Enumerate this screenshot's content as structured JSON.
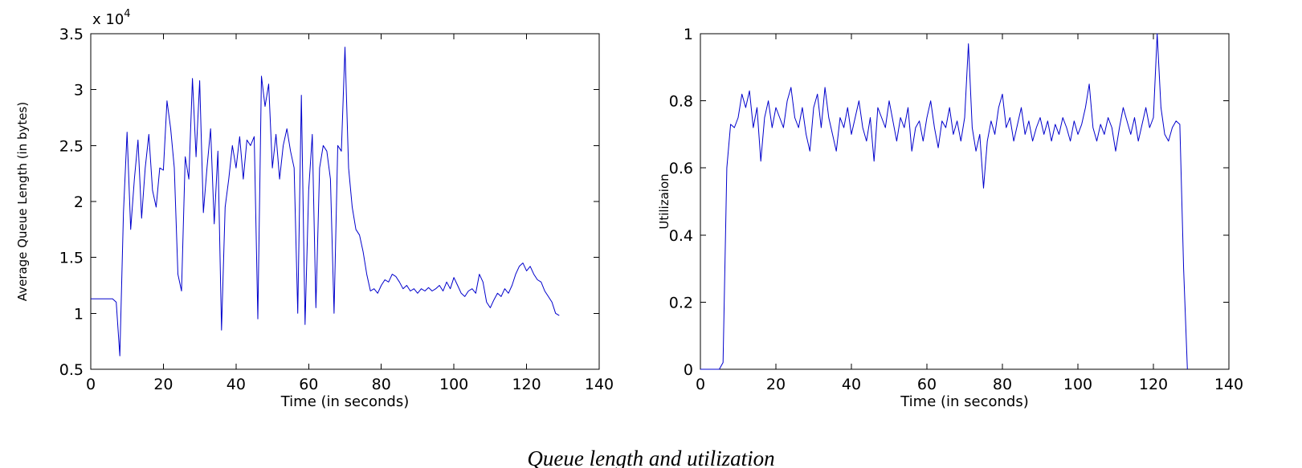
{
  "page": {
    "background": "#ffffff",
    "axis_color": "#000000"
  },
  "caption": {
    "text": "Queue length and utilization"
  },
  "chart_data": [
    {
      "type": "line",
      "title": "",
      "xlabel": "Time (in seconds)",
      "ylabel": "Average Queue Length (in bytes)",
      "y_scale": {
        "text": "x 10",
        "exp": "4"
      },
      "xlim": [
        0,
        140
      ],
      "ylim": [
        0.5,
        3.5
      ],
      "xticks": [
        0,
        20,
        40,
        60,
        80,
        100,
        120,
        140
      ],
      "yticks": [
        0.5,
        1,
        1.5,
        2,
        2.5,
        3,
        3.5
      ],
      "grid": false,
      "legend": "none",
      "line_color": "#0000cc",
      "x_range": [
        0,
        129,
        1
      ],
      "y": [
        1.13,
        1.13,
        1.13,
        1.13,
        1.13,
        1.13,
        1.13,
        1.1,
        0.62,
        1.9,
        2.62,
        1.75,
        2.2,
        2.55,
        1.85,
        2.3,
        2.6,
        2.1,
        1.95,
        2.3,
        2.28,
        2.9,
        2.65,
        2.3,
        1.35,
        1.2,
        2.4,
        2.2,
        3.1,
        2.4,
        3.08,
        1.9,
        2.3,
        2.65,
        1.8,
        2.45,
        0.85,
        1.95,
        2.2,
        2.5,
        2.3,
        2.58,
        2.2,
        2.55,
        2.5,
        2.58,
        0.95,
        3.12,
        2.85,
        3.05,
        2.3,
        2.6,
        2.2,
        2.5,
        2.65,
        2.45,
        2.3,
        1.0,
        2.95,
        0.9,
        2.1,
        2.6,
        1.05,
        2.3,
        2.5,
        2.45,
        2.2,
        1.0,
        2.5,
        2.45,
        3.38,
        2.3,
        1.95,
        1.75,
        1.7,
        1.55,
        1.35,
        1.2,
        1.22,
        1.18,
        1.25,
        1.3,
        1.28,
        1.35,
        1.33,
        1.28,
        1.22,
        1.25,
        1.2,
        1.22,
        1.18,
        1.22,
        1.2,
        1.23,
        1.2,
        1.22,
        1.25,
        1.2,
        1.28,
        1.22,
        1.32,
        1.25,
        1.18,
        1.15,
        1.2,
        1.22,
        1.18,
        1.35,
        1.28,
        1.1,
        1.05,
        1.12,
        1.18,
        1.15,
        1.22,
        1.18,
        1.25,
        1.35,
        1.42,
        1.45,
        1.38,
        1.42,
        1.35,
        1.3,
        1.28,
        1.2,
        1.15,
        1.1,
        1.0,
        0.98
      ]
    },
    {
      "type": "line",
      "title": "",
      "xlabel": "Time (in seconds)",
      "ylabel": "Utilizaion",
      "xlim": [
        0,
        140
      ],
      "ylim": [
        0,
        1
      ],
      "xticks": [
        0,
        20,
        40,
        60,
        80,
        100,
        120,
        140
      ],
      "yticks": [
        0,
        0.2,
        0.4,
        0.6,
        0.8,
        1
      ],
      "grid": false,
      "legend": "none",
      "line_color": "#0000cc",
      "x_range": [
        0,
        129,
        1
      ],
      "y": [
        0,
        0,
        0,
        0,
        0,
        0,
        0.02,
        0.6,
        0.73,
        0.72,
        0.75,
        0.82,
        0.78,
        0.83,
        0.72,
        0.78,
        0.62,
        0.75,
        0.8,
        0.72,
        0.78,
        0.75,
        0.72,
        0.8,
        0.84,
        0.75,
        0.72,
        0.78,
        0.7,
        0.65,
        0.78,
        0.82,
        0.72,
        0.84,
        0.75,
        0.7,
        0.65,
        0.75,
        0.72,
        0.78,
        0.7,
        0.75,
        0.8,
        0.72,
        0.68,
        0.75,
        0.62,
        0.78,
        0.75,
        0.72,
        0.8,
        0.74,
        0.68,
        0.75,
        0.72,
        0.78,
        0.65,
        0.72,
        0.74,
        0.68,
        0.75,
        0.8,
        0.72,
        0.66,
        0.74,
        0.72,
        0.78,
        0.7,
        0.74,
        0.68,
        0.75,
        0.97,
        0.72,
        0.65,
        0.7,
        0.54,
        0.68,
        0.74,
        0.7,
        0.78,
        0.82,
        0.72,
        0.75,
        0.68,
        0.73,
        0.78,
        0.7,
        0.74,
        0.68,
        0.72,
        0.75,
        0.7,
        0.74,
        0.68,
        0.73,
        0.7,
        0.75,
        0.72,
        0.68,
        0.74,
        0.7,
        0.73,
        0.78,
        0.85,
        0.72,
        0.68,
        0.73,
        0.7,
        0.75,
        0.72,
        0.65,
        0.72,
        0.78,
        0.74,
        0.7,
        0.75,
        0.68,
        0.73,
        0.78,
        0.72,
        0.75,
        1.0,
        0.78,
        0.7,
        0.68,
        0.72,
        0.74,
        0.73,
        0.3,
        0
      ]
    }
  ]
}
